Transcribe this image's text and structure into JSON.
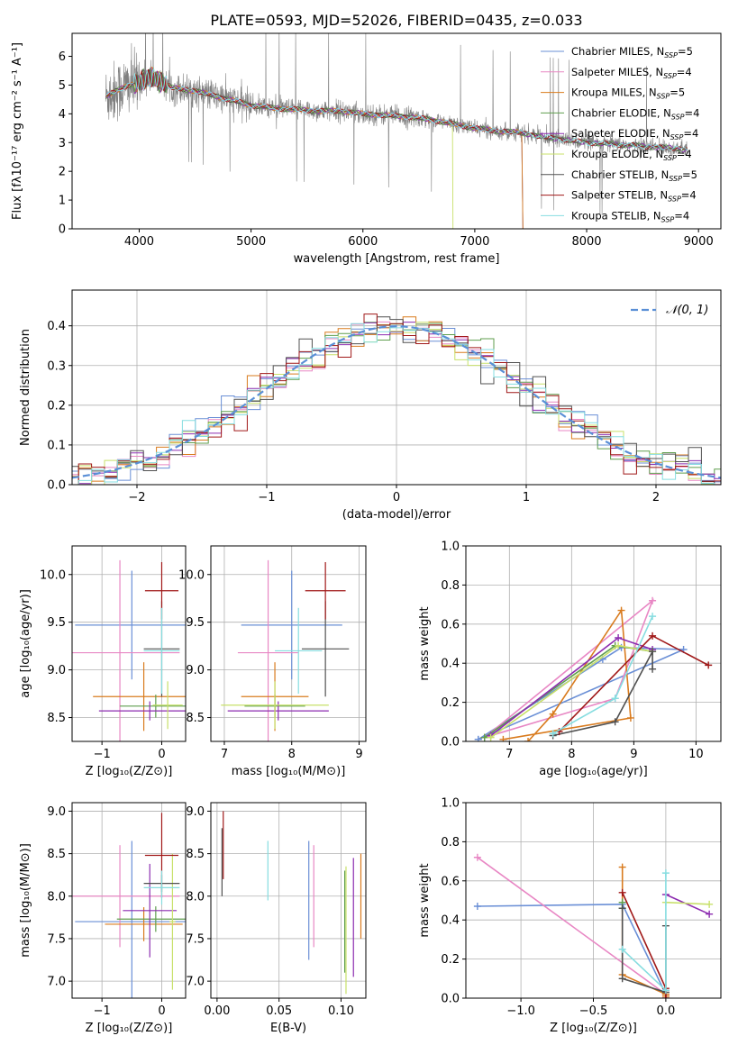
{
  "title": "PLATE=0593, MJD=52026, FIBERID=0435, z=0.033",
  "colors": {
    "chabrier_miles": "#6a8fd6",
    "salpeter_miles": "#e887c4",
    "kroupa_miles": "#d97b1e",
    "chabrier_elodie": "#5f9e4e",
    "salpeter_elodie": "#8c2cb0",
    "kroupa_elodie": "#c8e06a",
    "chabrier_stelib": "#505050",
    "salpeter_stelib": "#a01818",
    "kroupa_stelib": "#86dde0",
    "data": "#808080",
    "gauss": "#5a8fd6",
    "grid": "#b0b0b0"
  },
  "chart_data": [
    {
      "id": "spectrum",
      "type": "line",
      "title": "PLATE=0593, MJD=52026, FIBERID=0435, z=0.033",
      "xlabel": "wavelength [Angstrom, rest frame]",
      "ylabel": "Flux [fλ10⁻¹⁷ erg cm⁻² s⁻¹ A⁻¹]",
      "xlim": [
        3400,
        9200
      ],
      "ylim": [
        0,
        6.8
      ],
      "xticks": [
        4000,
        5000,
        6000,
        7000,
        8000,
        9000
      ],
      "yticks": [
        0,
        1,
        2,
        3,
        4,
        5,
        6
      ],
      "legend_position": "top-right",
      "legend": [
        {
          "label": "Chabrier MILES, N",
          "sub": "SSP",
          "value": "=5",
          "color_key": "chabrier_miles"
        },
        {
          "label": "Salpeter MILES, N",
          "sub": "SSP",
          "value": "=4",
          "color_key": "salpeter_miles"
        },
        {
          "label": "Kroupa MILES, N",
          "sub": "SSP",
          "value": "=5",
          "color_key": "kroupa_miles"
        },
        {
          "label": "Chabrier ELODIE, N",
          "sub": "SSP",
          "value": "=4",
          "color_key": "chabrier_elodie"
        },
        {
          "label": "Salpeter ELODIE, N",
          "sub": "SSP",
          "value": "=4",
          "color_key": "salpeter_elodie"
        },
        {
          "label": "Kroupa ELODIE, N",
          "sub": "SSP",
          "value": "=4",
          "color_key": "kroupa_elodie"
        },
        {
          "label": "Chabrier STELIB, N",
          "sub": "SSP",
          "value": "=5",
          "color_key": "chabrier_stelib"
        },
        {
          "label": "Salpeter STELIB, N",
          "sub": "SSP",
          "value": "=4",
          "color_key": "salpeter_stelib"
        },
        {
          "label": "Kroupa STELIB, N",
          "sub": "SSP",
          "value": "=4",
          "color_key": "kroupa_stelib"
        }
      ],
      "model_continuum": {
        "x": [
          3700,
          3800,
          3900,
          4000,
          4100,
          4200,
          4300,
          4500,
          4700,
          4900,
          5000,
          5200,
          5400,
          5600,
          5800,
          6000,
          6200,
          6400,
          6600,
          6800,
          7000,
          7200,
          7400,
          7600,
          7800,
          8000,
          8200,
          8400,
          8600,
          8800,
          8900
        ],
        "y": [
          4.6,
          4.8,
          5.0,
          5.1,
          5.3,
          5.1,
          4.9,
          4.8,
          4.6,
          4.4,
          4.3,
          4.2,
          4.15,
          4.1,
          4.1,
          4.0,
          3.95,
          3.9,
          3.8,
          3.65,
          3.5,
          3.4,
          3.35,
          3.2,
          3.1,
          3.0,
          2.95,
          2.9,
          2.85,
          2.8,
          2.75
        ]
      }
    },
    {
      "id": "residuals",
      "type": "histogram",
      "xlabel": "(data-model)/error",
      "ylabel": "Normed distribution",
      "xlim": [
        -2.5,
        2.5
      ],
      "ylim": [
        0,
        0.49
      ],
      "xticks": [
        -2,
        -1,
        0,
        1,
        2
      ],
      "yticks": [
        0,
        0.1,
        0.2,
        0.3,
        0.4
      ],
      "legend_position": "top-right",
      "legend_label": "𝒩(0, 1)",
      "bin_width": 0.1
    },
    {
      "id": "age_vs_Z",
      "type": "errorbar",
      "xlabel": "Z [log₁₀(Z/Z⊙)]",
      "ylabel": "age  [log₁₀(age/yr)]",
      "xlim": [
        -1.5,
        0.4
      ],
      "ylim": [
        8.25,
        10.3
      ],
      "xticks": [
        -1,
        0
      ],
      "yticks": [
        8.5,
        9.0,
        9.5,
        10.0
      ],
      "points": [
        {
          "color_key": "chabrier_miles",
          "x": -0.5,
          "xerr": 0.95,
          "y": 9.47,
          "yerr": 0.57
        },
        {
          "color_key": "salpeter_miles",
          "x": -0.7,
          "xerr": 1.0,
          "y": 9.18,
          "yerr": 0.97
        },
        {
          "color_key": "kroupa_miles",
          "x": -0.3,
          "xerr": 0.85,
          "y": 8.72,
          "yerr": 0.36
        },
        {
          "color_key": "chabrier_elodie",
          "x": -0.1,
          "xerr": 0.6,
          "y": 8.62,
          "yerr": 0.12
        },
        {
          "color_key": "salpeter_elodie",
          "x": -0.2,
          "xerr": 0.85,
          "y": 8.57,
          "yerr": 0.1
        },
        {
          "color_key": "kroupa_elodie",
          "x": 0.1,
          "xerr": 0.25,
          "y": 8.63,
          "yerr": 0.25
        },
        {
          "color_key": "chabrier_stelib",
          "x": 0.0,
          "xerr": 0.3,
          "y": 9.22,
          "yerr": 0.5
        },
        {
          "color_key": "salpeter_stelib",
          "x": 0.0,
          "xerr": 0.28,
          "y": 9.83,
          "yerr": 0.3
        },
        {
          "color_key": "kroupa_stelib",
          "x": 0.0,
          "xerr": 0.3,
          "y": 9.2,
          "yerr": 0.45
        }
      ]
    },
    {
      "id": "age_vs_mass",
      "type": "errorbar",
      "xlabel": "mass [log₁₀(M/M⊙)]",
      "ylabel": "",
      "xlim": [
        6.8,
        9.1
      ],
      "ylim": [
        8.25,
        10.3
      ],
      "xticks": [
        7,
        8,
        9
      ],
      "yticks": [
        8.5,
        9.0,
        9.5,
        10.0
      ],
      "points": [
        {
          "color_key": "chabrier_miles",
          "x": 8.0,
          "xerr": 0.75,
          "y": 9.47,
          "yerr": 0.57
        },
        {
          "color_key": "salpeter_miles",
          "x": 7.65,
          "xerr": 0.45,
          "y": 9.18,
          "yerr": 0.97
        },
        {
          "color_key": "kroupa_miles",
          "x": 7.75,
          "xerr": 0.5,
          "y": 8.72,
          "yerr": 0.36
        },
        {
          "color_key": "chabrier_elodie",
          "x": 7.75,
          "xerr": 0.45,
          "y": 8.62,
          "yerr": 0.12
        },
        {
          "color_key": "salpeter_elodie",
          "x": 7.8,
          "xerr": 0.75,
          "y": 8.57,
          "yerr": 0.1
        },
        {
          "color_key": "kroupa_elodie",
          "x": 7.75,
          "xerr": 0.8,
          "y": 8.63,
          "yerr": 0.25
        },
        {
          "color_key": "chabrier_stelib",
          "x": 8.5,
          "xerr": 0.35,
          "y": 9.22,
          "yerr": 0.5
        },
        {
          "color_key": "salpeter_stelib",
          "x": 8.5,
          "xerr": 0.3,
          "y": 9.83,
          "yerr": 0.3
        },
        {
          "color_key": "kroupa_stelib",
          "x": 8.1,
          "xerr": 0.35,
          "y": 9.2,
          "yerr": 0.45
        }
      ]
    },
    {
      "id": "weight_vs_age",
      "type": "line",
      "xlabel": "age  [log₁₀(age/yr)]",
      "ylabel": "mass weight",
      "xlim": [
        6.3,
        10.4
      ],
      "ylim": [
        0,
        1.0
      ],
      "xticks": [
        7,
        8,
        9,
        10
      ],
      "yticks": [
        0,
        0.2,
        0.4,
        0.6,
        0.8,
        1.0
      ],
      "series": [
        {
          "color_key": "chabrier_miles",
          "x": [
            6.5,
            8.5,
            8.8,
            9.8,
            6.5
          ],
          "y": [
            0.01,
            0.42,
            0.48,
            0.47,
            0.01
          ]
        },
        {
          "color_key": "salpeter_miles",
          "x": [
            6.6,
            8.7,
            9.3,
            6.6
          ],
          "y": [
            0.02,
            0.22,
            0.72,
            0.02
          ]
        },
        {
          "color_key": "kroupa_miles",
          "x": [
            7.3,
            7.7,
            8.8,
            8.95,
            6.9
          ],
          "y": [
            0.0,
            0.14,
            0.67,
            0.12,
            0.01
          ]
        },
        {
          "color_key": "chabrier_elodie",
          "x": [
            6.6,
            8.7,
            9.3
          ],
          "y": [
            0.02,
            0.49,
            0.46
          ]
        },
        {
          "color_key": "salpeter_elodie",
          "x": [
            6.7,
            8.75,
            9.3
          ],
          "y": [
            0.03,
            0.53,
            0.47
          ]
        },
        {
          "color_key": "kroupa_elodie",
          "x": [
            6.7,
            8.75,
            9.3
          ],
          "y": [
            0.02,
            0.49,
            0.46
          ]
        },
        {
          "color_key": "chabrier_stelib",
          "x": [
            7.7,
            8.7,
            9.3,
            9.3
          ],
          "y": [
            0.03,
            0.1,
            0.46,
            0.37
          ]
        },
        {
          "color_key": "salpeter_stelib",
          "x": [
            7.8,
            9.3,
            10.2
          ],
          "y": [
            0.05,
            0.54,
            0.39
          ]
        },
        {
          "color_key": "kroupa_stelib",
          "x": [
            7.7,
            8.7,
            9.3
          ],
          "y": [
            0.04,
            0.22,
            0.64
          ]
        }
      ]
    },
    {
      "id": "mass_vs_Z",
      "type": "errorbar",
      "xlabel": "Z [log₁₀(Z/Z⊙)]",
      "ylabel": "mass [log₁₀(M/M⊙)]",
      "xlim": [
        -1.5,
        0.4
      ],
      "ylim": [
        6.8,
        9.1
      ],
      "xticks": [
        -1,
        0
      ],
      "yticks": [
        7.0,
        7.5,
        8.0,
        8.5,
        9.0
      ],
      "points": [
        {
          "color_key": "chabrier_miles",
          "x": -0.5,
          "xerr": 0.95,
          "y": 7.7,
          "yerr": 0.95
        },
        {
          "color_key": "salpeter_miles",
          "x": -0.7,
          "xerr": 1.0,
          "y": 8.0,
          "yerr": 0.6
        },
        {
          "color_key": "kroupa_miles",
          "x": -0.3,
          "xerr": 0.65,
          "y": 7.67,
          "yerr": 0.2
        },
        {
          "color_key": "chabrier_elodie",
          "x": -0.1,
          "xerr": 0.65,
          "y": 7.73,
          "yerr": 0.15
        },
        {
          "color_key": "salpeter_elodie",
          "x": -0.2,
          "xerr": 0.45,
          "y": 7.83,
          "yerr": 0.55
        },
        {
          "color_key": "kroupa_elodie",
          "x": 0.18,
          "xerr": 0.05,
          "y": 7.7,
          "yerr": 0.8
        },
        {
          "color_key": "chabrier_stelib",
          "x": 0.0,
          "xerr": 0.3,
          "y": 8.15,
          "yerr": 0.1
        },
        {
          "color_key": "salpeter_stelib",
          "x": 0.0,
          "xerr": 0.28,
          "y": 8.48,
          "yerr": 0.5
        },
        {
          "color_key": "kroupa_stelib",
          "x": 0.0,
          "xerr": 0.3,
          "y": 8.1,
          "yerr": 0.2
        }
      ]
    },
    {
      "id": "mass_vs_ebv",
      "type": "errorbar",
      "xlabel": "E(B-V)",
      "ylabel": "",
      "xlim": [
        -0.005,
        0.12
      ],
      "ylim": [
        6.8,
        9.1
      ],
      "xticks": [
        0.0,
        0.05,
        0.1
      ],
      "xticklabels": [
        "0.00",
        "0.05",
        "0.10"
      ],
      "yticks": [
        7.0,
        7.5,
        8.0,
        8.5,
        9.0
      ],
      "points": [
        {
          "color_key": "chabrier_miles",
          "x": 0.074,
          "xerr": 0,
          "y": 7.95,
          "yerr": 0.7
        },
        {
          "color_key": "salpeter_miles",
          "x": 0.078,
          "xerr": 0,
          "y": 8.0,
          "yerr": 0.6
        },
        {
          "color_key": "kroupa_miles",
          "x": 0.116,
          "xerr": 0,
          "y": 8.0,
          "yerr": 0.5
        },
        {
          "color_key": "chabrier_elodie",
          "x": 0.103,
          "xerr": 0,
          "y": 7.7,
          "yerr": 0.6
        },
        {
          "color_key": "salpeter_elodie",
          "x": 0.11,
          "xerr": 0,
          "y": 7.75,
          "yerr": 0.7
        },
        {
          "color_key": "kroupa_elodie",
          "x": 0.104,
          "xerr": 0,
          "y": 7.6,
          "yerr": 0.75
        },
        {
          "color_key": "chabrier_stelib",
          "x": 0.004,
          "xerr": 0,
          "y": 8.4,
          "yerr": 0.4
        },
        {
          "color_key": "salpeter_stelib",
          "x": 0.005,
          "xerr": 0,
          "y": 8.6,
          "yerr": 0.4
        },
        {
          "color_key": "kroupa_stelib",
          "x": 0.041,
          "xerr": 0,
          "y": 8.3,
          "yerr": 0.35
        }
      ]
    },
    {
      "id": "weight_vs_Z",
      "type": "line",
      "xlabel": "Z [log₁₀(Z/Z⊙)]",
      "ylabel": "mass weight",
      "xlim": [
        -1.38,
        0.38
      ],
      "ylim": [
        0,
        1.0
      ],
      "xticks": [
        -1.0,
        -0.5,
        0.0
      ],
      "xticklabels": [
        "−1.0",
        "−0.5",
        "0.0"
      ],
      "yticks": [
        0,
        0.2,
        0.4,
        0.6,
        0.8,
        1.0
      ],
      "series": [
        {
          "color_key": "chabrier_miles",
          "x": [
            -1.3,
            -0.3,
            0.0
          ],
          "y": [
            0.47,
            0.48,
            0.02
          ]
        },
        {
          "color_key": "salpeter_miles",
          "x": [
            -1.3,
            0.0,
            0.0
          ],
          "y": [
            0.72,
            0.02,
            0.04
          ]
        },
        {
          "color_key": "kroupa_miles",
          "x": [
            -0.3,
            -0.3,
            0.0,
            0.0
          ],
          "y": [
            0.67,
            0.12,
            0.02,
            0.01
          ]
        },
        {
          "color_key": "chabrier_elodie",
          "x": [
            -0.3,
            -0.3
          ],
          "y": [
            0.49,
            0.46
          ]
        },
        {
          "color_key": "salpeter_elodie",
          "x": [
            0.0,
            0.3
          ],
          "y": [
            0.53,
            0.43
          ]
        },
        {
          "color_key": "kroupa_elodie",
          "x": [
            0.0,
            0.3
          ],
          "y": [
            0.49,
            0.48
          ]
        },
        {
          "color_key": "chabrier_stelib",
          "x": [
            -0.3,
            -0.3,
            0.0,
            0.0
          ],
          "y": [
            0.46,
            0.1,
            0.03,
            0.37
          ]
        },
        {
          "color_key": "salpeter_stelib",
          "x": [
            -0.3,
            0.0,
            0.0
          ],
          "y": [
            0.54,
            0.05,
            0.0
          ]
        },
        {
          "color_key": "kroupa_stelib",
          "x": [
            -0.3,
            0.0,
            0.0
          ],
          "y": [
            0.25,
            0.04,
            0.64
          ]
        }
      ]
    }
  ]
}
